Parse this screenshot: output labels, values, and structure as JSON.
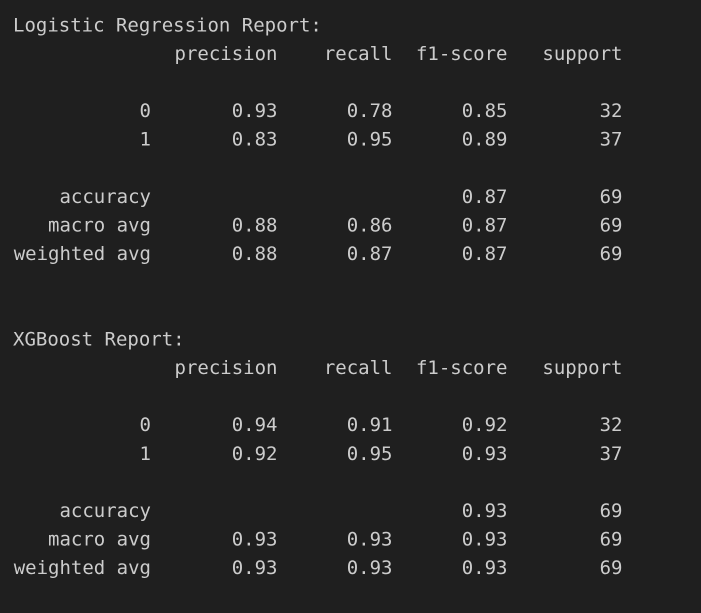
{
  "reports": [
    {
      "title": "Logistic Regression Report:",
      "columns": [
        "precision",
        "recall",
        "f1-score",
        "support"
      ],
      "rows": [
        {
          "label": "0",
          "cells": [
            0.93,
            0.78,
            0.85,
            32
          ]
        },
        {
          "label": "1",
          "cells": [
            0.83,
            0.95,
            0.89,
            37
          ]
        },
        {
          "label": "accuracy",
          "cells": [
            null,
            null,
            0.87,
            69
          ]
        },
        {
          "label": "macro avg",
          "cells": [
            0.88,
            0.86,
            0.87,
            69
          ]
        },
        {
          "label": "weighted avg",
          "cells": [
            0.88,
            0.87,
            0.87,
            69
          ]
        }
      ]
    },
    {
      "title": "XGBoost Report:",
      "columns": [
        "precision",
        "recall",
        "f1-score",
        "support"
      ],
      "rows": [
        {
          "label": "0",
          "cells": [
            0.94,
            0.91,
            0.92,
            32
          ]
        },
        {
          "label": "1",
          "cells": [
            0.92,
            0.95,
            0.93,
            37
          ]
        },
        {
          "label": "accuracy",
          "cells": [
            null,
            null,
            0.93,
            69
          ]
        },
        {
          "label": "macro avg",
          "cells": [
            0.93,
            0.93,
            0.93,
            69
          ]
        },
        {
          "label": "weighted avg",
          "cells": [
            0.93,
            0.93,
            0.93,
            69
          ]
        }
      ]
    }
  ]
}
